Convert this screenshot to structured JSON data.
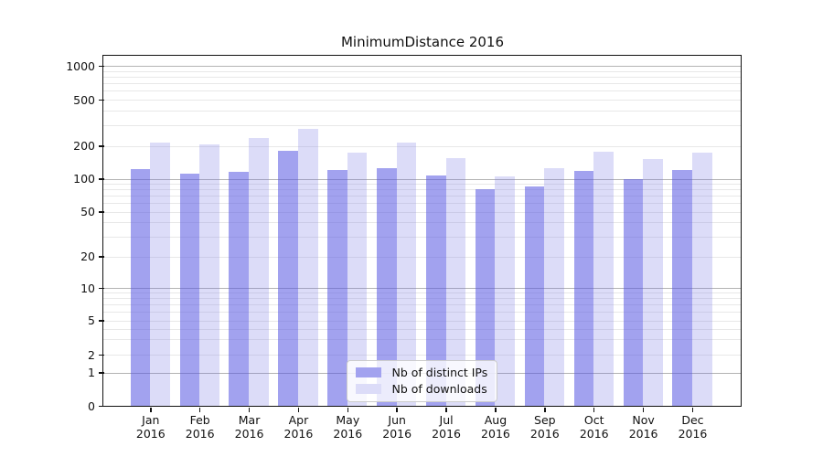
{
  "title": "MinimumDistance 2016",
  "chart_data": {
    "type": "bar",
    "title": "MinimumDistance 2016",
    "categories": [
      "Jan 2016",
      "Feb 2016",
      "Mar 2016",
      "Apr 2016",
      "May 2016",
      "Jun 2016",
      "Jul 2016",
      "Aug 2016",
      "Sep 2016",
      "Oct 2016",
      "Nov 2016",
      "Dec 2016"
    ],
    "series": [
      {
        "name": "Nb of distinct IPs",
        "color": "#a2a2ef",
        "fill": "rgba(86,86,226,0.55)",
        "values": [
          123,
          111,
          116,
          180,
          121,
          125,
          108,
          80,
          85,
          117,
          100,
          120
        ]
      },
      {
        "name": "Nb of downloads",
        "color": "#dcdcf8",
        "fill": "rgba(115,115,227,0.25)",
        "values": [
          215,
          205,
          232,
          281,
          174,
          215,
          155,
          104,
          124,
          176,
          150,
          174
        ]
      }
    ],
    "y_axis": {
      "scale": "symlog",
      "ticks": [
        0,
        1,
        2,
        5,
        10,
        20,
        50,
        100,
        200,
        500,
        1000
      ],
      "range": [
        0,
        1250
      ]
    },
    "legend": {
      "position": "lower-center",
      "entries": [
        "Nb of distinct IPs",
        "Nb of downloads"
      ]
    },
    "grid": {
      "major_values": [
        1,
        10,
        100,
        1000
      ],
      "major_color": "#b3b3b3",
      "minor_color": "#e8e8e8"
    }
  }
}
